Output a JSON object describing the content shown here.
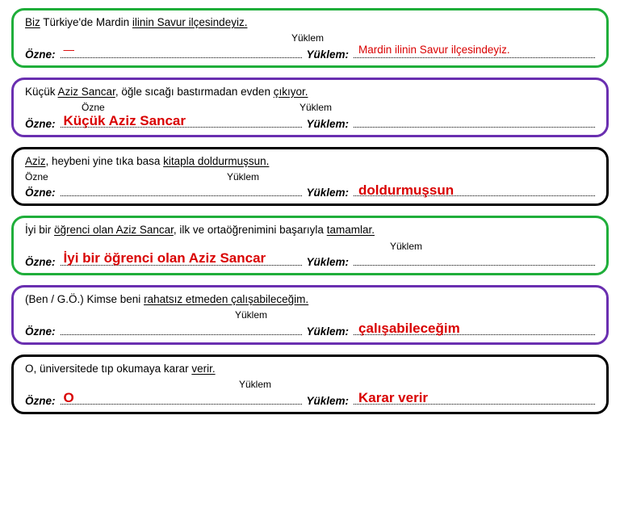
{
  "labels": {
    "ozne": "Özne:",
    "yuklem": "Yüklem:"
  },
  "hints": {
    "ozne": "Özne",
    "yuklem": "Yüklem"
  },
  "colors": {
    "green": "#1fae3a",
    "purple": "#6a2fb0",
    "black": "#000000",
    "purple2": "#6a2fb0",
    "green2": "#1fae3a"
  },
  "cards": [
    {
      "border": "green",
      "preUnderline": "Biz",
      "mid": " Türkiye'de Mardin ",
      "postUnderline": "ilinin Savur ilçesindeyiz.",
      "hintCenter": "Yüklem",
      "hintCenterLeft": 330,
      "ozneAns": "—",
      "ozneClass": "dash",
      "yuklemAns": "Mardin ilinin Savur ilçesindeyiz.",
      "yuklemClass": "red-thin"
    },
    {
      "border": "purple",
      "pre": "Küçük ",
      "preUnderline": "Aziz Sancar",
      "mid": ", öğle sıcağı bastırmadan evden ",
      "postUnderline": "çıkıyor.",
      "hintLeft": "Özne",
      "hintLeftPos": 70,
      "hintRight": "Yüklem",
      "hintRightPos": 340,
      "ozneAns": "Küçük Aziz Sancar",
      "ozneClass": "red",
      "yuklemAns": "",
      "yuklemClass": ""
    },
    {
      "border": "black",
      "preUnderline": "Aziz",
      "mid": ", heybeni yine tıka basa ",
      "postUnderline": "kitapla doldurmuşsun.",
      "hintLeft": "Özne",
      "hintLeftPos": 0,
      "hintRight": "Yüklem",
      "hintRightPos": 250,
      "ozneAns": "",
      "ozneClass": "",
      "yuklemAns": "doldurmuşsun",
      "yuklemClass": "red"
    },
    {
      "border": "green2",
      "pre": "İyi bir ",
      "preUnderline": "öğrenci olan Aziz Sancar",
      "mid": ", ilk ve ortaöğrenimini başarıyla ",
      "postUnderline": "tamamlar.",
      "hintRight": "Yüklem",
      "hintRightPos": 452,
      "ozneAns": "İyi bir öğrenci olan Aziz Sancar",
      "ozneClass": "red",
      "ozneOverlayTop": -6,
      "yuklemAns": "",
      "yuklemClass": ""
    },
    {
      "border": "purple2",
      "plain": "(Ben / G.Ö.) Kimse beni ",
      "postUnderline": "rahatsız etmeden çalışabileceğim.",
      "hintCenter": "Yüklem",
      "hintCenterLeft": 260,
      "ozneAns": "",
      "ozneClass": "",
      "yuklemAns": "çalışabileceğim",
      "yuklemClass": "red"
    },
    {
      "border": "black",
      "plain": "O, üniversitede tıp okumaya karar ",
      "postUnderline": "verir.",
      "hintCenter": "Yüklem",
      "hintCenterLeft": 265,
      "ozneAns": "O",
      "ozneClass": "red",
      "yuklemAns": "Karar verir",
      "yuklemClass": "red"
    }
  ]
}
